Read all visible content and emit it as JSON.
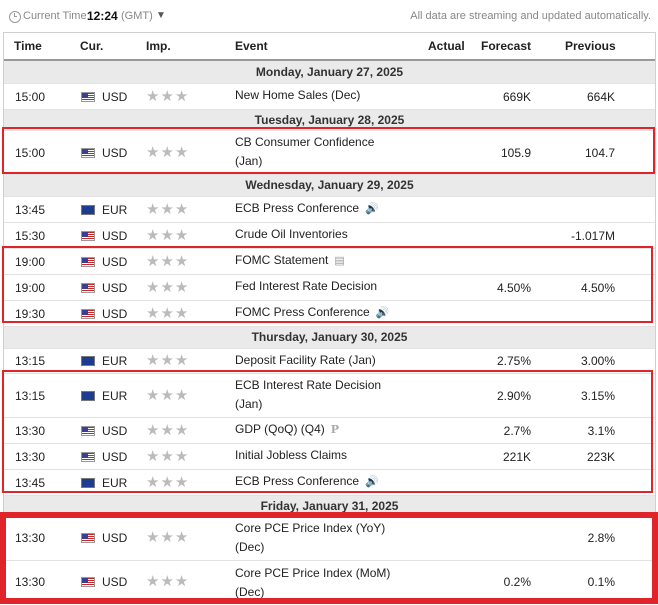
{
  "topbar": {
    "current_time_label": "Current Time:",
    "time": "12:24",
    "zone": "(GMT)",
    "streaming_note": "All data are streaming and updated automatically."
  },
  "columns": {
    "time": "Time",
    "cur": "Cur.",
    "imp": "Imp.",
    "event": "Event",
    "actual": "Actual",
    "forecast": "Forecast",
    "previous": "Previous"
  },
  "days": [
    "Monday, January 27, 2025",
    "Tuesday, January 28, 2025",
    "Wednesday, January 29, 2025",
    "Thursday, January 30, 2025",
    "Friday, January 31, 2025"
  ],
  "events": [
    {
      "time": "15:00",
      "cur": "USD",
      "stars": "★★★",
      "event": "New Home Sales (Dec)",
      "actual": "",
      "forecast": "669K",
      "previous": "664K"
    },
    {
      "time": "15:00",
      "cur": "USD",
      "stars": "★★★",
      "event_line1": "CB Consumer Confidence",
      "event_line2": "(Jan)",
      "actual": "",
      "forecast": "105.9",
      "previous": "104.7"
    },
    {
      "time": "13:45",
      "cur": "EUR",
      "stars": "★★★",
      "event": "ECB Press Conference",
      "icon": "speaker-icon",
      "actual": "",
      "forecast": "",
      "previous": ""
    },
    {
      "time": "15:30",
      "cur": "USD",
      "stars": "★★★",
      "event": "Crude Oil Inventories",
      "actual": "",
      "forecast": "",
      "previous": "-1.017M"
    },
    {
      "time": "19:00",
      "cur": "USD",
      "stars": "★★★",
      "event": "FOMC Statement",
      "icon": "document-icon",
      "actual": "",
      "forecast": "",
      "previous": ""
    },
    {
      "time": "19:00",
      "cur": "USD",
      "stars": "★★★",
      "event": "Fed Interest Rate Decision",
      "actual": "",
      "forecast": "4.50%",
      "previous": "4.50%"
    },
    {
      "time": "19:30",
      "cur": "USD",
      "stars": "★★★",
      "event": "FOMC Press Conference",
      "icon": "speaker-icon",
      "actual": "",
      "forecast": "",
      "previous": ""
    },
    {
      "time": "13:15",
      "cur": "EUR",
      "stars": "★★★",
      "event": "Deposit Facility Rate (Jan)",
      "actual": "",
      "forecast": "2.75%",
      "previous": "3.00%"
    },
    {
      "time": "13:15",
      "cur": "EUR",
      "stars": "★★★",
      "event_line1": "ECB Interest Rate Decision",
      "event_line2": "(Jan)",
      "actual": "",
      "forecast": "2.90%",
      "previous": "3.15%"
    },
    {
      "time": "13:30",
      "cur": "USD",
      "stars": "★★★",
      "event": "GDP (QoQ) (Q4)",
      "icon_text": "P",
      "actual": "",
      "forecast": "2.7%",
      "previous": "3.1%"
    },
    {
      "time": "13:30",
      "cur": "USD",
      "stars": "★★★",
      "event": "Initial Jobless Claims",
      "actual": "",
      "forecast": "221K",
      "previous": "223K"
    },
    {
      "time": "13:45",
      "cur": "EUR",
      "stars": "★★★",
      "event": "ECB Press Conference",
      "icon": "speaker-icon",
      "actual": "",
      "forecast": "",
      "previous": ""
    },
    {
      "time": "13:30",
      "cur": "USD",
      "stars": "★★★",
      "event_line1": "Core PCE Price Index (YoY)",
      "event_line2": "(Dec)",
      "actual": "",
      "forecast": "",
      "previous": "2.8%"
    },
    {
      "time": "13:30",
      "cur": "USD",
      "stars": "★★★",
      "event_line1": "Core PCE Price Index (MoM)",
      "event_line2": "(Dec)",
      "actual": "",
      "forecast": "0.2%",
      "previous": "0.1%"
    }
  ],
  "icons": {
    "speaker": "🔊",
    "document": "▤"
  },
  "colors": {
    "highlight": "#e0252a",
    "day_bg": "#eaeaea",
    "star": "#bbbbbb"
  }
}
